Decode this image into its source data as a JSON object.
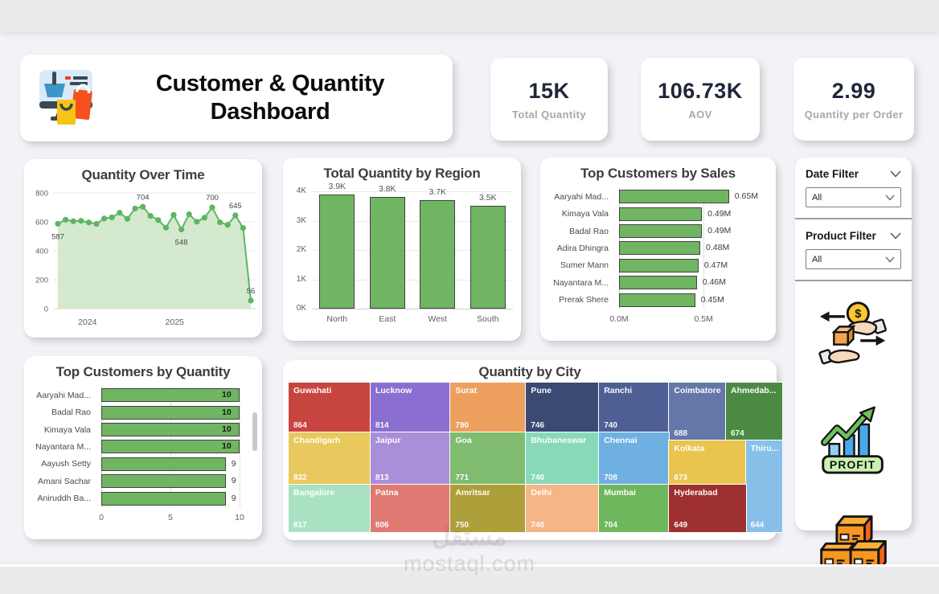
{
  "page": {
    "watermark_logo": "مستقل",
    "watermark_domain": "mostaql.com"
  },
  "header": {
    "title_line1": "Customer & Quantity",
    "title_line2": "Dashboard",
    "icon": "shopping-dashboard-icon"
  },
  "kpis": [
    {
      "value": "15K",
      "label": "Total Quantity"
    },
    {
      "value": "106.73K",
      "label": "AOV"
    },
    {
      "value": "2.99",
      "label": "Quantity per Order"
    }
  ],
  "filters": {
    "date_filter": {
      "label": "Date Filter",
      "value": "All"
    },
    "product_filter": {
      "label": "Product Filter",
      "value": "All"
    }
  },
  "side_icons": [
    {
      "name": "exchange-goods-icon",
      "coin_symbol": "$"
    },
    {
      "name": "profit-icon",
      "badge_text": "PROFIT"
    },
    {
      "name": "boxes-icon"
    }
  ],
  "colors": {
    "bar_fill": "#6fb562",
    "bar_border": "#424242",
    "line": "#5cb661",
    "area": "#cfe7c8",
    "grid": "#e9e9e9",
    "axis_text": "#5f5f5f",
    "label_text": "#3f3f3f"
  },
  "chart_data": [
    {
      "id": "quantity-over-time",
      "type": "area",
      "title": "Quantity Over Time",
      "ylabel": "",
      "ylim": [
        0,
        800
      ],
      "y_ticks": [
        0,
        200,
        400,
        600,
        800
      ],
      "x_axis_labels": [
        "2024",
        "2025"
      ],
      "values": [
        587,
        615,
        604,
        607,
        596,
        586,
        623,
        631,
        663,
        621,
        692,
        704,
        641,
        612,
        560,
        648,
        548,
        652,
        601,
        629,
        700,
        597,
        579,
        645,
        558,
        56
      ],
      "point_labels": [
        {
          "index": 0,
          "text": "587",
          "placement": "below"
        },
        {
          "index": 11,
          "text": "704",
          "placement": "above"
        },
        {
          "index": 16,
          "text": "548",
          "placement": "below"
        },
        {
          "index": 20,
          "text": "700",
          "placement": "above"
        },
        {
          "index": 23,
          "text": "645",
          "placement": "above"
        },
        {
          "index": 25,
          "text": "56",
          "placement": "above"
        }
      ]
    },
    {
      "id": "quantity-by-region",
      "type": "bar",
      "title": "Total Quantity by Region",
      "categories": [
        "North",
        "East",
        "West",
        "South"
      ],
      "values": [
        3900,
        3800,
        3700,
        3500
      ],
      "data_labels": [
        "3.9K",
        "3.8K",
        "3.7K",
        "3.5K"
      ],
      "ylim": [
        0,
        4000
      ],
      "y_ticks": [
        0,
        1000,
        2000,
        3000,
        4000
      ],
      "y_tick_labels": [
        "0K",
        "1K",
        "2K",
        "3K",
        "4K"
      ]
    },
    {
      "id": "top-customers-by-sales",
      "type": "hbar",
      "title": "Top Customers by Sales",
      "categories": [
        "Aaryahi Mad...",
        "Kimaya Vala",
        "Badal Rao",
        "Adira Dhingra",
        "Sumer Mann",
        "Nayantara M...",
        "Prerak Shere"
      ],
      "values": [
        0.65,
        0.49,
        0.49,
        0.48,
        0.47,
        0.46,
        0.45
      ],
      "data_labels": [
        "0.65M",
        "0.49M",
        "0.49M",
        "0.48M",
        "0.47M",
        "0.46M",
        "0.45M"
      ],
      "xlim": [
        0,
        0.86
      ],
      "x_ticks": [
        0,
        0.5
      ],
      "x_tick_labels": [
        "0.0M",
        "0.5M"
      ]
    },
    {
      "id": "top-customers-by-quantity",
      "type": "hbar",
      "title": "Top Customers by Quantity",
      "categories": [
        "Aaryahi Mad...",
        "Badal Rao",
        "Kimaya Vala",
        "Nayantara M...",
        "Aayush Setty",
        "Amani Sachar",
        "Aniruddh Ba..."
      ],
      "values": [
        10,
        10,
        10,
        10,
        9,
        9,
        9
      ],
      "data_labels": [
        "10",
        "10",
        "10",
        "10",
        "9",
        "9",
        "9"
      ],
      "xlim": [
        0,
        10
      ],
      "x_ticks": [
        0,
        5,
        10
      ],
      "x_tick_labels": [
        "0",
        "5",
        "10"
      ],
      "has_scrollbar": true
    },
    {
      "id": "quantity-by-city",
      "type": "treemap",
      "title": "Quantity by City",
      "tiles": [
        {
          "name": "Guwahati",
          "value": 864,
          "color": "#c8453f",
          "x": 0,
          "y": 0,
          "w": 16.6,
          "h": 33.5
        },
        {
          "name": "Lucknow",
          "value": 814,
          "color": "#8a6fd0",
          "x": 16.6,
          "y": 0,
          "w": 16.2,
          "h": 33.5
        },
        {
          "name": "Surat",
          "value": 790,
          "color": "#eda05e",
          "x": 32.8,
          "y": 0,
          "w": 15.3,
          "h": 33.5
        },
        {
          "name": "Pune",
          "value": 746,
          "color": "#3a4a73",
          "x": 48.1,
          "y": 0,
          "w": 14.8,
          "h": 33.5
        },
        {
          "name": "Ranchi",
          "value": 740,
          "color": "#4d5f94",
          "x": 62.9,
          "y": 0,
          "w": 14.2,
          "h": 33.5
        },
        {
          "name": "Coimbatore",
          "value": 688,
          "color": "#6377a8",
          "x": 77.1,
          "y": 0,
          "w": 11.5,
          "h": 38.8
        },
        {
          "name": "Ahmedab...",
          "value": 674,
          "color": "#4c8a44",
          "x": 88.6,
          "y": 0,
          "w": 11.4,
          "h": 38.8
        },
        {
          "name": "Chandigarh",
          "value": 832,
          "color": "#e9c95d",
          "x": 0,
          "y": 33.5,
          "w": 16.6,
          "h": 34.8
        },
        {
          "name": "Jaipur",
          "value": 813,
          "color": "#a98fd8",
          "x": 16.6,
          "y": 33.5,
          "w": 16.2,
          "h": 34.8
        },
        {
          "name": "Goa",
          "value": 771,
          "color": "#7fbc6f",
          "x": 32.8,
          "y": 33.5,
          "w": 15.3,
          "h": 34.8
        },
        {
          "name": "Bhubaneswar",
          "value": 740,
          "color": "#88d9b8",
          "x": 48.1,
          "y": 33.5,
          "w": 14.8,
          "h": 34.8
        },
        {
          "name": "Chennai",
          "value": 708,
          "color": "#6fb0e3",
          "x": 62.9,
          "y": 33.5,
          "w": 14.2,
          "h": 34.8
        },
        {
          "name": "Kolkata",
          "value": 673,
          "color": "#e9c44e",
          "x": 77.1,
          "y": 38.8,
          "w": 15.5,
          "h": 29.5
        },
        {
          "name": "Thiru...",
          "value": 644,
          "color": "#88c0ea",
          "x": 92.6,
          "y": 38.8,
          "w": 7.4,
          "h": 61.2
        },
        {
          "name": "Bangalore",
          "value": 817,
          "color": "#a9e2c3",
          "x": 0,
          "y": 68.3,
          "w": 16.6,
          "h": 31.7
        },
        {
          "name": "Patna",
          "value": 806,
          "color": "#de7a72",
          "x": 16.6,
          "y": 68.3,
          "w": 16.2,
          "h": 31.7
        },
        {
          "name": "Amritsar",
          "value": 750,
          "color": "#ad9f39",
          "x": 32.8,
          "y": 68.3,
          "w": 15.3,
          "h": 31.7
        },
        {
          "name": "Delhi",
          "value": 740,
          "color": "#f4b687",
          "x": 48.1,
          "y": 68.3,
          "w": 14.8,
          "h": 31.7
        },
        {
          "name": "Mumbai",
          "value": 704,
          "color": "#6fb75d",
          "x": 62.9,
          "y": 68.3,
          "w": 14.2,
          "h": 31.7
        },
        {
          "name": "Hyderabad",
          "value": 649,
          "color": "#9e3030",
          "x": 77.1,
          "y": 68.3,
          "w": 15.5,
          "h": 31.7
        }
      ]
    }
  ]
}
